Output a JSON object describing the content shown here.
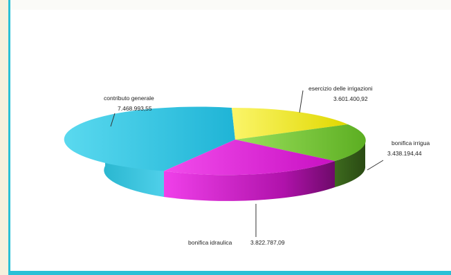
{
  "chart_data": {
    "type": "pie",
    "title": "",
    "slices": [
      {
        "label": "esercizio delle irrigazioni",
        "value_text": "3.601.400,92",
        "value": 3601400.92,
        "color": "#f2ec1a"
      },
      {
        "label": "bonifica irrigua",
        "value_text": "3.438.194,44",
        "value": 3438194.44,
        "color": "#7ccd3a"
      },
      {
        "label": "bonifica idraulica",
        "value_text": "3.822.787,09",
        "value": 3822787.09,
        "color": "#e820e0"
      },
      {
        "label": "contributo generale",
        "value_text": "7.468.993,55",
        "value": 7468993.55,
        "color": "#2fc6e4"
      }
    ]
  }
}
